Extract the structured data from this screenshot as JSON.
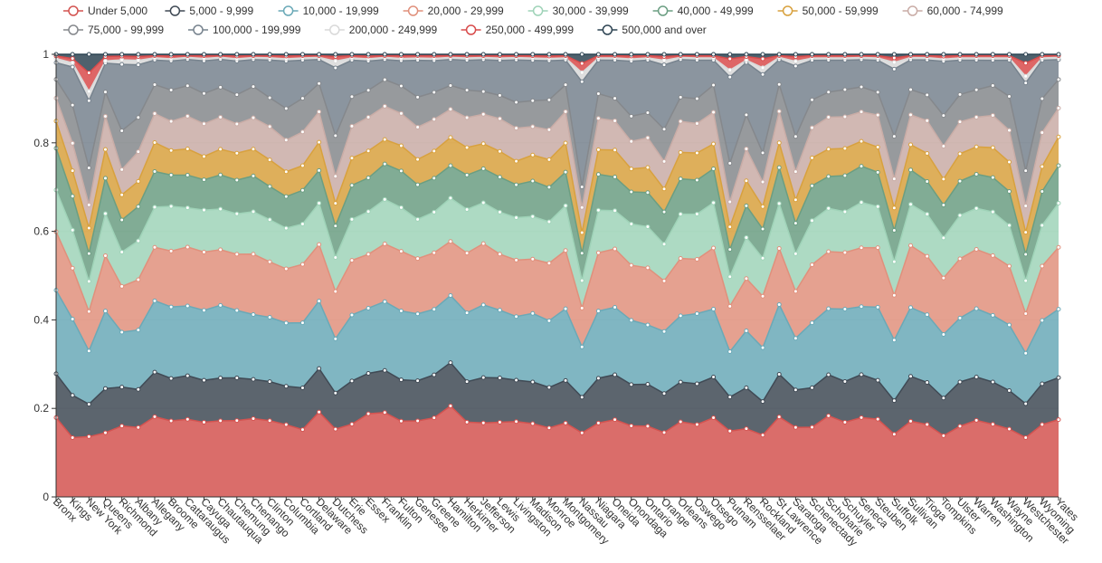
{
  "chart_data": {
    "type": "area",
    "stacked": true,
    "normalized": true,
    "ylim": [
      0,
      1
    ],
    "yticks": [
      "0",
      "0.2",
      "0.4",
      "0.6",
      "0.8",
      "1"
    ],
    "categories": [
      "Bronx",
      "Kings",
      "New York",
      "Queens",
      "Richmond",
      "Albany",
      "Allegany",
      "Broome",
      "Cattaraugus",
      "Cayuga",
      "Chautauqua",
      "Chemung",
      "Chenango",
      "Clinton",
      "Columbia",
      "Cortland",
      "Delaware",
      "Dutchess",
      "Erie",
      "Essex",
      "Franklin",
      "Fulton",
      "Genesee",
      "Greene",
      "Hamilton",
      "Herkimer",
      "Jefferson",
      "Lewis",
      "Livingston",
      "Madison",
      "Monroe",
      "Montgomery",
      "Nassau",
      "Niagara",
      "Oneida",
      "Onondaga",
      "Ontario",
      "Orange",
      "Orleans",
      "Oswego",
      "Otsego",
      "Putnam",
      "Rensselaer",
      "Rockland",
      "St Lawrence",
      "Saratoga",
      "Schenectady",
      "Schoharie",
      "Schuyler",
      "Seneca",
      "Steuben",
      "Suffolk",
      "Sullivan",
      "Tioga",
      "Tompkins",
      "Ulster",
      "Warren",
      "Washington",
      "Wayne",
      "Westchester",
      "Wyoming",
      "Yates"
    ],
    "series": [
      {
        "name": "Under 5,000",
        "color": "#d35350",
        "values": [
          0.19,
          0.14,
          0.13,
          0.145,
          0.155,
          0.152,
          0.18,
          0.17,
          0.178,
          0.16,
          0.178,
          0.17,
          0.175,
          0.172,
          0.16,
          0.15,
          0.195,
          0.15,
          0.16,
          0.185,
          0.19,
          0.165,
          0.165,
          0.175,
          0.21,
          0.163,
          0.163,
          0.16,
          0.16,
          0.155,
          0.15,
          0.165,
          0.14,
          0.165,
          0.172,
          0.155,
          0.155,
          0.14,
          0.17,
          0.16,
          0.175,
          0.145,
          0.15,
          0.138,
          0.178,
          0.148,
          0.15,
          0.178,
          0.165,
          0.175,
          0.17,
          0.14,
          0.165,
          0.155,
          0.13,
          0.155,
          0.168,
          0.158,
          0.15,
          0.135,
          0.16,
          0.175
        ]
      },
      {
        "name": "5,000 - 9,999",
        "color": "#404a55",
        "values": [
          0.105,
          0.1,
          0.07,
          0.1,
          0.085,
          0.083,
          0.1,
          0.095,
          0.1,
          0.09,
          0.1,
          0.095,
          0.088,
          0.088,
          0.085,
          0.093,
          0.1,
          0.08,
          0.095,
          0.09,
          0.095,
          0.09,
          0.087,
          0.095,
          0.1,
          0.088,
          0.1,
          0.095,
          0.088,
          0.088,
          0.088,
          0.095,
          0.078,
          0.1,
          0.1,
          0.09,
          0.092,
          0.085,
          0.09,
          0.09,
          0.09,
          0.075,
          0.09,
          0.075,
          0.095,
          0.08,
          0.085,
          0.09,
          0.09,
          0.095,
          0.085,
          0.075,
          0.098,
          0.09,
          0.08,
          0.097,
          0.095,
          0.092,
          0.085,
          0.077,
          0.09,
          0.095
        ]
      },
      {
        "name": "10,000 - 19,999",
        "color": "#6aa9b7",
        "values": [
          0.2,
          0.18,
          0.115,
          0.175,
          0.12,
          0.13,
          0.16,
          0.16,
          0.16,
          0.15,
          0.17,
          0.15,
          0.145,
          0.145,
          0.14,
          0.145,
          0.155,
          0.12,
          0.145,
          0.145,
          0.155,
          0.15,
          0.145,
          0.145,
          0.155,
          0.15,
          0.16,
          0.145,
          0.135,
          0.145,
          0.145,
          0.16,
          0.11,
          0.15,
          0.15,
          0.14,
          0.13,
          0.135,
          0.15,
          0.155,
          0.15,
          0.1,
          0.125,
          0.12,
          0.155,
          0.11,
          0.14,
          0.145,
          0.16,
          0.15,
          0.16,
          0.135,
          0.15,
          0.145,
          0.135,
          0.14,
          0.15,
          0.145,
          0.145,
          0.115,
          0.14,
          0.155
        ]
      },
      {
        "name": "20,000 - 29,999",
        "color": "#e0907c",
        "values": [
          0.14,
          0.12,
          0.085,
          0.125,
          0.1,
          0.11,
          0.12,
          0.125,
          0.135,
          0.125,
          0.13,
          0.125,
          0.135,
          0.125,
          0.12,
          0.13,
          0.13,
          0.105,
          0.12,
          0.12,
          0.13,
          0.13,
          0.12,
          0.125,
          0.125,
          0.13,
          0.135,
          0.12,
          0.12,
          0.115,
          0.125,
          0.13,
          0.085,
          0.13,
          0.13,
          0.12,
          0.125,
          0.11,
          0.13,
          0.12,
          0.135,
          0.1,
          0.115,
          0.115,
          0.125,
          0.1,
          0.125,
          0.125,
          0.125,
          0.13,
          0.13,
          0.1,
          0.135,
          0.125,
          0.12,
          0.13,
          0.13,
          0.13,
          0.13,
          0.09,
          0.12,
          0.14
        ]
      },
      {
        "name": "30,000 - 39,999",
        "color": "#9fd3b8",
        "values": [
          0.1,
          0.09,
          0.065,
          0.095,
          0.075,
          0.085,
          0.09,
          0.1,
          0.09,
          0.09,
          0.095,
          0.09,
          0.095,
          0.095,
          0.09,
          0.09,
          0.095,
          0.075,
          0.09,
          0.095,
          0.1,
          0.095,
          0.085,
          0.09,
          0.1,
          0.095,
          0.09,
          0.09,
          0.09,
          0.09,
          0.09,
          0.1,
          0.06,
          0.095,
          0.085,
          0.09,
          0.09,
          0.08,
          0.1,
          0.1,
          0.1,
          0.065,
          0.09,
          0.085,
          0.1,
          0.08,
          0.095,
          0.095,
          0.09,
          0.1,
          0.09,
          0.075,
          0.09,
          0.09,
          0.085,
          0.095,
          0.09,
          0.095,
          0.09,
          0.075,
          0.09,
          0.1
        ]
      },
      {
        "name": "40,000 - 49,999",
        "color": "#6b9e82",
        "values": [
          0.1,
          0.08,
          0.06,
          0.08,
          0.07,
          0.075,
          0.08,
          0.07,
          0.075,
          0.065,
          0.08,
          0.075,
          0.08,
          0.075,
          0.07,
          0.075,
          0.075,
          0.07,
          0.075,
          0.075,
          0.08,
          0.08,
          0.075,
          0.075,
          0.075,
          0.075,
          0.075,
          0.075,
          0.07,
          0.075,
          0.075,
          0.075,
          0.06,
          0.08,
          0.075,
          0.07,
          0.075,
          0.07,
          0.08,
          0.075,
          0.075,
          0.06,
          0.07,
          0.065,
          0.08,
          0.065,
          0.075,
          0.07,
          0.08,
          0.08,
          0.075,
          0.07,
          0.075,
          0.07,
          0.07,
          0.075,
          0.075,
          0.075,
          0.075,
          0.06,
          0.075,
          0.085
        ]
      },
      {
        "name": "50,000 - 59,999",
        "color": "#d8a13e",
        "values": [
          0.065,
          0.06,
          0.055,
          0.065,
          0.055,
          0.055,
          0.065,
          0.055,
          0.06,
          0.05,
          0.06,
          0.06,
          0.06,
          0.06,
          0.055,
          0.055,
          0.065,
          0.05,
          0.06,
          0.06,
          0.055,
          0.055,
          0.055,
          0.06,
          0.065,
          0.06,
          0.055,
          0.055,
          0.05,
          0.055,
          0.06,
          0.065,
          0.045,
          0.055,
          0.06,
          0.05,
          0.055,
          0.05,
          0.06,
          0.06,
          0.055,
          0.05,
          0.055,
          0.05,
          0.055,
          0.05,
          0.06,
          0.06,
          0.06,
          0.055,
          0.055,
          0.05,
          0.055,
          0.06,
          0.055,
          0.06,
          0.06,
          0.065,
          0.065,
          0.05,
          0.055,
          0.065
        ]
      },
      {
        "name": "60,000 - 74,999",
        "color": "#c9aca6",
        "values": [
          0.055,
          0.065,
          0.05,
          0.075,
          0.055,
          0.065,
          0.065,
          0.065,
          0.075,
          0.07,
          0.075,
          0.065,
          0.07,
          0.075,
          0.07,
          0.075,
          0.07,
          0.06,
          0.07,
          0.075,
          0.075,
          0.07,
          0.07,
          0.07,
          0.065,
          0.065,
          0.065,
          0.07,
          0.07,
          0.06,
          0.065,
          0.07,
          0.055,
          0.07,
          0.065,
          0.06,
          0.065,
          0.06,
          0.07,
          0.065,
          0.07,
          0.055,
          0.07,
          0.055,
          0.07,
          0.06,
          0.065,
          0.07,
          0.07,
          0.065,
          0.07,
          0.065,
          0.065,
          0.07,
          0.07,
          0.07,
          0.065,
          0.07,
          0.07,
          0.06,
          0.075,
          0.065
        ]
      },
      {
        "name": "75,000 - 99,999",
        "color": "#85888c",
        "values": [
          0.045,
          0.09,
          0.08,
          0.055,
          0.085,
          0.075,
          0.065,
          0.07,
          0.07,
          0.065,
          0.07,
          0.065,
          0.07,
          0.065,
          0.07,
          0.075,
          0.065,
          0.09,
          0.065,
          0.06,
          0.06,
          0.06,
          0.065,
          0.06,
          0.055,
          0.06,
          0.05,
          0.05,
          0.055,
          0.055,
          0.065,
          0.06,
          0.045,
          0.055,
          0.05,
          0.055,
          0.055,
          0.07,
          0.055,
          0.055,
          0.06,
          0.085,
          0.075,
          0.065,
          0.06,
          0.075,
          0.06,
          0.055,
          0.06,
          0.055,
          0.05,
          0.095,
          0.055,
          0.055,
          0.065,
          0.06,
          0.06,
          0.065,
          0.075,
          0.08,
          0.075,
          0.065
        ]
      },
      {
        "name": "100,000 - 199,999",
        "color": "#77838e",
        "values": [
          0.04,
          0.09,
          0.145,
          0.065,
          0.145,
          0.115,
          0.055,
          0.065,
          0.06,
          0.07,
          0.065,
          0.075,
          0.06,
          0.085,
          0.105,
          0.085,
          0.055,
          0.15,
          0.08,
          0.065,
          0.045,
          0.055,
          0.08,
          0.07,
          0.06,
          0.065,
          0.07,
          0.075,
          0.09,
          0.085,
          0.085,
          0.055,
          0.23,
          0.075,
          0.085,
          0.12,
          0.115,
          0.14,
          0.085,
          0.085,
          0.055,
          0.19,
          0.115,
          0.175,
          0.055,
          0.15,
          0.085,
          0.07,
          0.065,
          0.06,
          0.07,
          0.15,
          0.065,
          0.075,
          0.115,
          0.075,
          0.065,
          0.055,
          0.08,
          0.2,
          0.085,
          0.045
        ]
      },
      {
        "name": "200,000 - 249,999",
        "color": "#d9d9d9",
        "values": [
          0.01,
          0.01,
          0.02,
          0.005,
          0.01,
          0.01,
          0.005,
          0.005,
          0.005,
          0.005,
          0.005,
          0.005,
          0.005,
          0.005,
          0.005,
          0.005,
          0.005,
          0.015,
          0.005,
          0.005,
          0.005,
          0.005,
          0.005,
          0.005,
          0.005,
          0.005,
          0.005,
          0.005,
          0.005,
          0.005,
          0.005,
          0.005,
          0.02,
          0.005,
          0.005,
          0.005,
          0.005,
          0.01,
          0.005,
          0.005,
          0.005,
          0.015,
          0.005,
          0.015,
          0.005,
          0.01,
          0.005,
          0.005,
          0.005,
          0.005,
          0.005,
          0.015,
          0.005,
          0.005,
          0.005,
          0.005,
          0.005,
          0.005,
          0.005,
          0.015,
          0.005,
          0.005
        ]
      },
      {
        "name": "250,000 - 499,999",
        "color": "#d84b4b",
        "values": [
          0.006,
          0.01,
          0.04,
          0.01,
          0.008,
          0.008,
          0.005,
          0.006,
          0.004,
          0.006,
          0.004,
          0.006,
          0.004,
          0.005,
          0.006,
          0.005,
          0.004,
          0.01,
          0.005,
          0.006,
          0.004,
          0.006,
          0.005,
          0.006,
          0.004,
          0.005,
          0.004,
          0.005,
          0.004,
          0.005,
          0.005,
          0.005,
          0.02,
          0.005,
          0.005,
          0.006,
          0.005,
          0.008,
          0.004,
          0.005,
          0.005,
          0.025,
          0.008,
          0.02,
          0.004,
          0.01,
          0.005,
          0.005,
          0.005,
          0.004,
          0.005,
          0.01,
          0.004,
          0.004,
          0.006,
          0.005,
          0.005,
          0.005,
          0.005,
          0.03,
          0.005,
          0.004
        ]
      },
      {
        "name": "500,000 and over",
        "color": "#2f4554",
        "values": [
          0.004,
          0.01,
          0.04,
          0.005,
          0.004,
          0.005,
          0.003,
          0.004,
          0.003,
          0.003,
          0.003,
          0.004,
          0.003,
          0.003,
          0.004,
          0.003,
          0.003,
          0.005,
          0.003,
          0.004,
          0.003,
          0.003,
          0.003,
          0.003,
          0.003,
          0.003,
          0.003,
          0.003,
          0.003,
          0.003,
          0.004,
          0.003,
          0.02,
          0.003,
          0.003,
          0.004,
          0.003,
          0.005,
          0.003,
          0.003,
          0.003,
          0.01,
          0.005,
          0.01,
          0.003,
          0.005,
          0.003,
          0.003,
          0.003,
          0.003,
          0.003,
          0.008,
          0.003,
          0.003,
          0.004,
          0.003,
          0.003,
          0.003,
          0.003,
          0.02,
          0.003,
          0.003
        ]
      }
    ]
  }
}
